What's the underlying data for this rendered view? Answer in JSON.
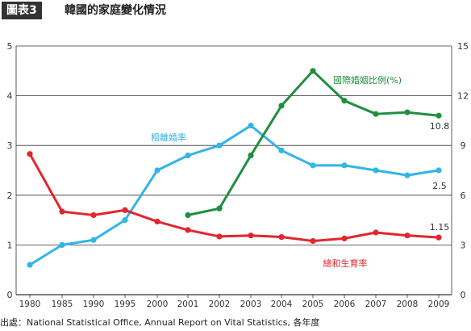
{
  "header": {
    "figure_label": "圖表3",
    "title": "韓國的家庭變化情況"
  },
  "source": "出處：National Statistical Office, Annual Report on Vital Statistics, 各年度",
  "colors": {
    "marriage": "#33b5e6",
    "international": "#1f8f3f",
    "fertility": "#e2262d",
    "grid": "#333333"
  },
  "chart_data": {
    "type": "line",
    "categories": [
      "1980",
      "1985",
      "1990",
      "1995",
      "2000",
      "2001",
      "2002",
      "2003",
      "2004",
      "2005",
      "2006",
      "2007",
      "2008",
      "2009"
    ],
    "left_axis": {
      "ticks": [
        "0",
        "1",
        "2",
        "3",
        "4",
        "5"
      ],
      "ylim": [
        0,
        5
      ]
    },
    "right_axis": {
      "ticks": [
        "0",
        "3",
        "6",
        "9",
        "12",
        "15"
      ],
      "ylim": [
        0,
        15
      ]
    },
    "series": [
      {
        "name": "粗離婚率",
        "axis": "left",
        "color": "#33b5e6",
        "values": [
          0.6,
          1.0,
          1.1,
          1.5,
          2.5,
          2.8,
          3.0,
          3.4,
          2.9,
          2.6,
          2.6,
          2.5,
          2.4,
          2.5
        ],
        "end_label": "2.5"
      },
      {
        "name": "國際婚姻比例(%)",
        "axis": "right",
        "color": "#1f8f3f",
        "values": [
          null,
          null,
          null,
          null,
          null,
          4.8,
          5.2,
          8.4,
          11.4,
          13.5,
          11.7,
          10.9,
          11.0,
          10.8
        ],
        "end_label": "10.8"
      },
      {
        "name": "總和生育率",
        "axis": "left",
        "color": "#e2262d",
        "values": [
          2.83,
          1.67,
          1.6,
          1.7,
          1.47,
          1.3,
          1.17,
          1.19,
          1.16,
          1.08,
          1.13,
          1.25,
          1.19,
          1.15
        ],
        "end_label": "1.15"
      }
    ]
  }
}
